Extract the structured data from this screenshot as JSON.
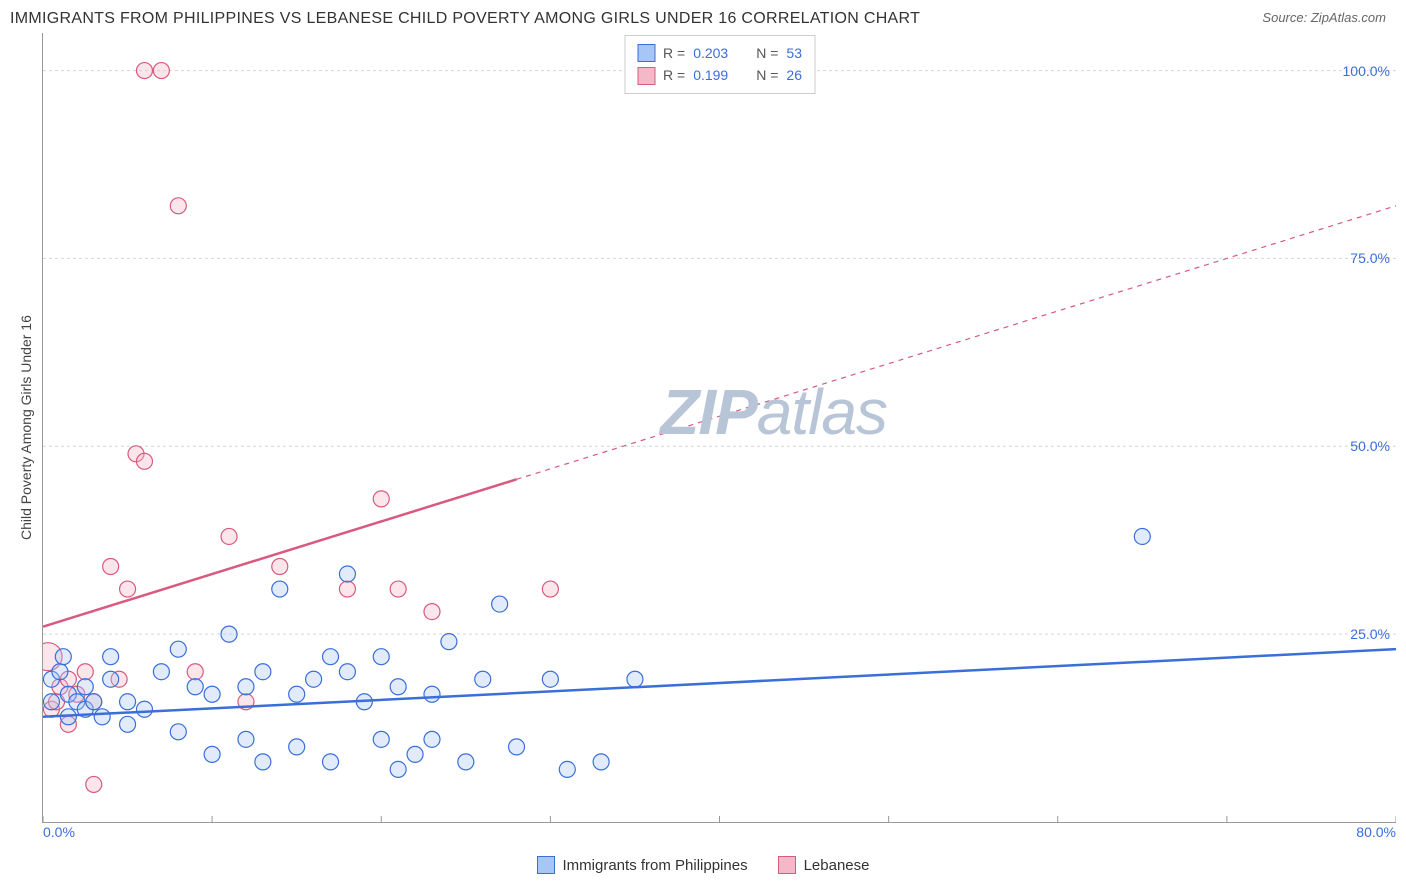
{
  "title": "IMMIGRANTS FROM PHILIPPINES VS LEBANESE CHILD POVERTY AMONG GIRLS UNDER 16 CORRELATION CHART",
  "source_label": "Source:",
  "source_value": "ZipAtlas.com",
  "y_axis_label": "Child Poverty Among Girls Under 16",
  "watermark_zip": "ZIP",
  "watermark_atlas": "atlas",
  "watermark_color": "#b8c5d6",
  "chart": {
    "type": "scatter",
    "background": "#ffffff",
    "grid_color": "#d5d5d5",
    "axis_color": "#999999",
    "tick_color": "#999999",
    "xlim": [
      0,
      80
    ],
    "ylim": [
      0,
      105
    ],
    "x_ticks": [
      0,
      10,
      20,
      30,
      40,
      50,
      60,
      70,
      80
    ],
    "x_tick_labels": {
      "0": "0.0%",
      "80": "80.0%"
    },
    "x_tick_label_color": "#3a6fd8",
    "y_ticks": [
      25,
      50,
      75,
      100
    ],
    "y_tick_labels": {
      "25": "25.0%",
      "50": "50.0%",
      "75": "75.0%",
      "100": "100.0%"
    },
    "y_tick_label_color": "#3a6fd8",
    "marker_radius": 8,
    "marker_stroke_width": 1.2,
    "marker_fill_opacity": 0.35,
    "trend_line_width": 2.5,
    "series": [
      {
        "name": "Immigrants from Philippines",
        "color": "#4a87e8",
        "fill": "#a8c6f5",
        "stroke": "#3a6fd8",
        "R": "0.203",
        "N": "53",
        "trend": {
          "x1": 0,
          "y1": 14,
          "x2": 80,
          "y2": 23,
          "solid_until_x": 80
        },
        "points": [
          [
            0.5,
            19
          ],
          [
            0.5,
            16
          ],
          [
            1,
            20
          ],
          [
            1.2,
            22
          ],
          [
            1.5,
            17
          ],
          [
            1.5,
            14
          ],
          [
            2,
            16
          ],
          [
            2.5,
            18
          ],
          [
            2.5,
            15
          ],
          [
            3,
            16
          ],
          [
            3.5,
            14
          ],
          [
            4,
            19
          ],
          [
            4,
            22
          ],
          [
            5,
            16
          ],
          [
            5,
            13
          ],
          [
            6,
            15
          ],
          [
            7,
            20
          ],
          [
            8,
            23
          ],
          [
            8,
            12
          ],
          [
            9,
            18
          ],
          [
            10,
            17
          ],
          [
            10,
            9
          ],
          [
            11,
            25
          ],
          [
            12,
            18
          ],
          [
            12,
            11
          ],
          [
            13,
            20
          ],
          [
            13,
            8
          ],
          [
            14,
            31
          ],
          [
            15,
            17
          ],
          [
            15,
            10
          ],
          [
            16,
            19
          ],
          [
            17,
            22
          ],
          [
            17,
            8
          ],
          [
            18,
            20
          ],
          [
            18,
            33
          ],
          [
            19,
            16
          ],
          [
            20,
            22
          ],
          [
            20,
            11
          ],
          [
            21,
            18
          ],
          [
            21,
            7
          ],
          [
            22,
            9
          ],
          [
            23,
            17
          ],
          [
            23,
            11
          ],
          [
            24,
            24
          ],
          [
            25,
            8
          ],
          [
            26,
            19
          ],
          [
            27,
            29
          ],
          [
            28,
            10
          ],
          [
            30,
            19
          ],
          [
            31,
            7
          ],
          [
            33,
            8
          ],
          [
            35,
            19
          ],
          [
            65,
            38
          ]
        ]
      },
      {
        "name": "Lebanese",
        "color": "#e87a9a",
        "fill": "#f5b8c9",
        "stroke": "#d85a7e",
        "R": "0.199",
        "N": "26",
        "trend": {
          "x1": 0,
          "y1": 26,
          "x2": 80,
          "y2": 82,
          "solid_until_x": 28
        },
        "points": [
          [
            0.5,
            15
          ],
          [
            0.8,
            16
          ],
          [
            1,
            18
          ],
          [
            1.5,
            19
          ],
          [
            1.5,
            13
          ],
          [
            2,
            17
          ],
          [
            2.5,
            20
          ],
          [
            3,
            16
          ],
          [
            3,
            5
          ],
          [
            4,
            34
          ],
          [
            4.5,
            19
          ],
          [
            5,
            31
          ],
          [
            5.5,
            49
          ],
          [
            6,
            48
          ],
          [
            6,
            100
          ],
          [
            7,
            100
          ],
          [
            8,
            82
          ],
          [
            9,
            20
          ],
          [
            11,
            38
          ],
          [
            12,
            16
          ],
          [
            14,
            34
          ],
          [
            18,
            31
          ],
          [
            20,
            43
          ],
          [
            21,
            31
          ],
          [
            23,
            28
          ],
          [
            30,
            31
          ]
        ],
        "big_points": [
          [
            0.3,
            22,
            14
          ]
        ]
      }
    ]
  },
  "legend_top": {
    "R_label": "R =",
    "N_label": "N =",
    "label_color": "#555555",
    "value_color": "#3a6fd8"
  },
  "legend_bottom": {
    "items": [
      {
        "label": "Immigrants from Philippines",
        "fill": "#a8c6f5",
        "stroke": "#3a6fd8"
      },
      {
        "label": "Lebanese",
        "fill": "#f5b8c9",
        "stroke": "#d85a7e"
      }
    ]
  }
}
